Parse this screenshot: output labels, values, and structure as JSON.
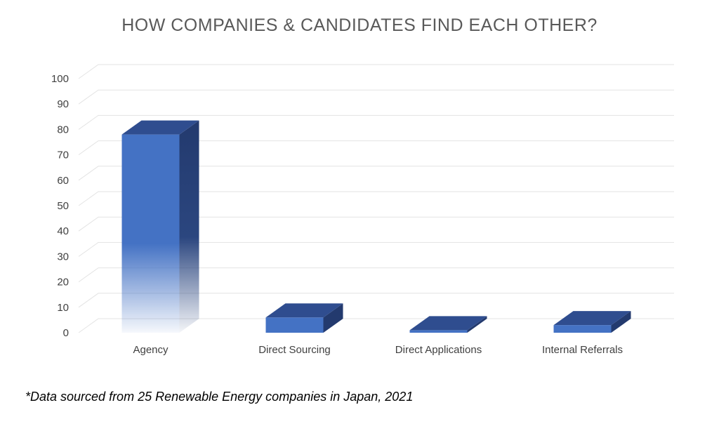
{
  "chart_data": {
    "type": "bar",
    "title": "HOW COMPANIES & CANDIDATES FIND EACH OTHER?",
    "categories": [
      "Agency",
      "Direct Sourcing",
      "Direct Applications",
      "Internal Referrals"
    ],
    "values": [
      78,
      6,
      1,
      3
    ],
    "ylim": [
      0,
      100
    ],
    "yticks": [
      0,
      10,
      20,
      30,
      40,
      50,
      60,
      70,
      80,
      90,
      100
    ],
    "xlabel": "",
    "ylabel": "",
    "grid": true,
    "style": "3d-column",
    "colors": {
      "bar_front": "#4472C4",
      "bar_top": "#2F4D8F",
      "bar_side": "#233A6E",
      "grid": "#E3E3E3"
    }
  },
  "footnote": "*Data sourced from 25 Renewable Energy companies in Japan, 2021"
}
